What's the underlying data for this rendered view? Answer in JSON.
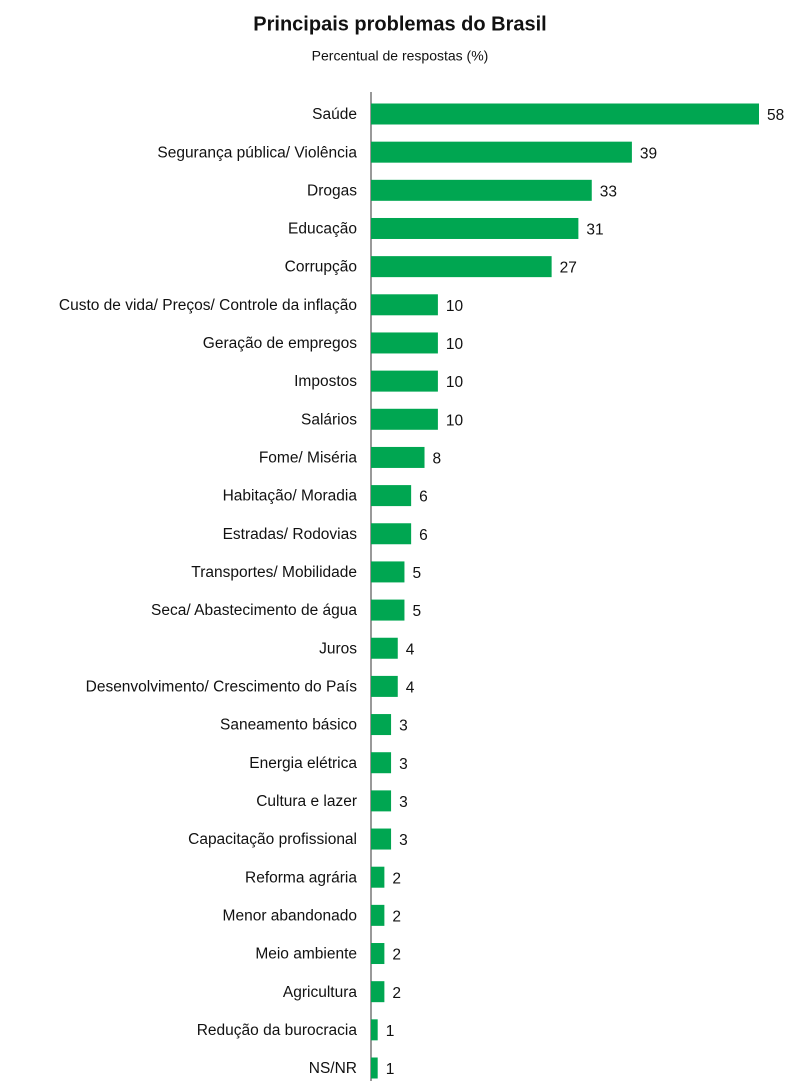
{
  "chart_data": {
    "type": "hbar",
    "title": "Principais problemas do Brasil",
    "subtitle": "Percentual de respostas (%)",
    "categories": [
      "Saúde",
      "Segurança pública/ Violência",
      "Drogas",
      "Educação",
      "Corrupção",
      "Custo de vida/ Preços/ Controle da inflação",
      "Geração de empregos",
      "Impostos",
      "Salários",
      "Fome/ Miséria",
      "Habitação/ Moradia",
      "Estradas/ Rodovias",
      "Transportes/ Mobilidade",
      "Seca/ Abastecimento de água",
      "Juros",
      "Desenvolvimento/ Crescimento do País",
      "Saneamento básico",
      "Energia elétrica",
      "Cultura e lazer",
      "Capacitação profissional",
      "Reforma agrária",
      "Menor abandonado",
      "Meio ambiente",
      "Agricultura",
      "Redução da burocracia",
      "NS/NR"
    ],
    "values": [
      58,
      39,
      33,
      31,
      27,
      10,
      10,
      10,
      10,
      8,
      6,
      6,
      5,
      5,
      4,
      4,
      3,
      3,
      3,
      3,
      2,
      2,
      2,
      2,
      1,
      1
    ],
    "color": "#00a651"
  }
}
